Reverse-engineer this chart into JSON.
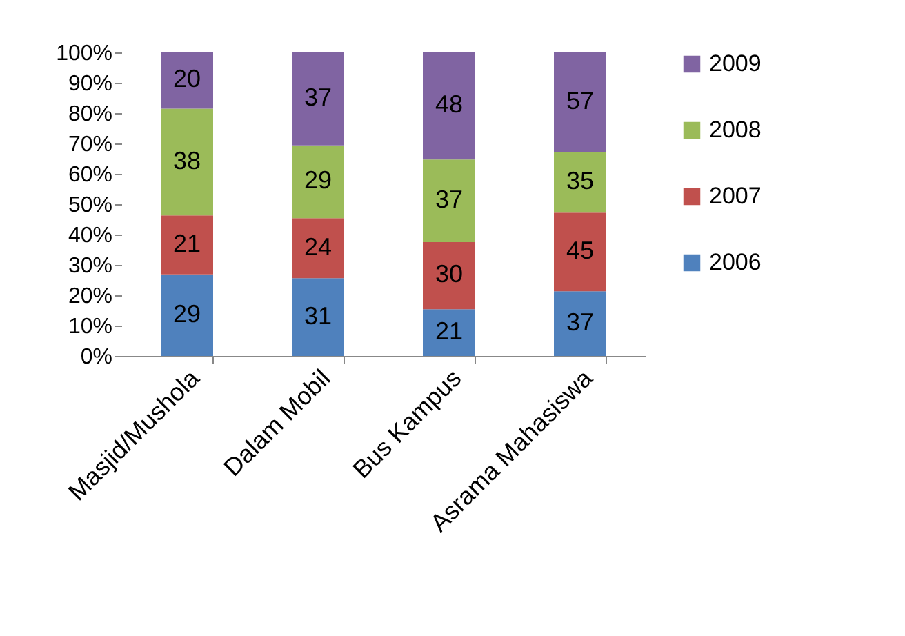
{
  "chart_data": {
    "type": "bar",
    "stacked": true,
    "categories": [
      "Masjid/Mushola",
      "Dalam Mobil",
      "Bus Kampus",
      "Asrama Mahasiswa"
    ],
    "series": [
      {
        "name": "2006",
        "color": "#4f81bd",
        "values": [
          26.9,
          25.6,
          15.4,
          21.3
        ]
      },
      {
        "name": "2007",
        "color": "#c0504d",
        "values": [
          19.4,
          19.8,
          22.1,
          25.9
        ]
      },
      {
        "name": "2008",
        "color": "#9bbb59",
        "values": [
          35.2,
          24.0,
          27.2,
          20.1
        ]
      },
      {
        "name": "2009",
        "color": "#8064a2",
        "values": [
          18.5,
          30.6,
          35.3,
          32.7
        ]
      }
    ],
    "annotations": [
      {
        "text": "29",
        "x": "Masjid/Mushola",
        "y": 13.5
      },
      {
        "text": "21",
        "x": "Masjid/Mushola",
        "y": 36.6
      },
      {
        "text": "38",
        "x": "Masjid/Mushola",
        "y": 63.9
      },
      {
        "text": "20",
        "x": "Masjid/Mushola",
        "y": 90.8
      },
      {
        "text": "31",
        "x": "Dalam Mobil",
        "y": 12.8
      },
      {
        "text": "24",
        "x": "Dalam Mobil",
        "y": 35.5
      },
      {
        "text": "29",
        "x": "Dalam Mobil",
        "y": 57.4
      },
      {
        "text": "37",
        "x": "Dalam Mobil",
        "y": 84.7
      },
      {
        "text": "21",
        "x": "Bus Kampus",
        "y": 7.7
      },
      {
        "text": "30",
        "x": "Bus Kampus",
        "y": 26.5
      },
      {
        "text": "37",
        "x": "Bus Kampus",
        "y": 51.1
      },
      {
        "text": "48",
        "x": "Bus Kampus",
        "y": 82.4
      },
      {
        "text": "37",
        "x": "Asrama Mahasiswa",
        "y": 10.7
      },
      {
        "text": "45",
        "x": "Asrama Mahasiswa",
        "y": 34.3
      },
      {
        "text": "35",
        "x": "Asrama Mahasiswa",
        "y": 57.3
      },
      {
        "text": "57",
        "x": "Asrama Mahasiswa",
        "y": 83.7
      }
    ],
    "ylim": [
      0,
      100
    ],
    "yticks": [
      {
        "value": 0,
        "label": "0%"
      },
      {
        "value": 10,
        "label": "10%"
      },
      {
        "value": 20,
        "label": "20%"
      },
      {
        "value": 30,
        "label": "30%"
      },
      {
        "value": 40,
        "label": "40%"
      },
      {
        "value": 50,
        "label": "50%"
      },
      {
        "value": 60,
        "label": "60%"
      },
      {
        "value": 70,
        "label": "70%"
      },
      {
        "value": 80,
        "label": "80%"
      },
      {
        "value": 90,
        "label": "90%"
      },
      {
        "value": 100,
        "label": "100%"
      }
    ],
    "grid": false,
    "legend": "right"
  }
}
